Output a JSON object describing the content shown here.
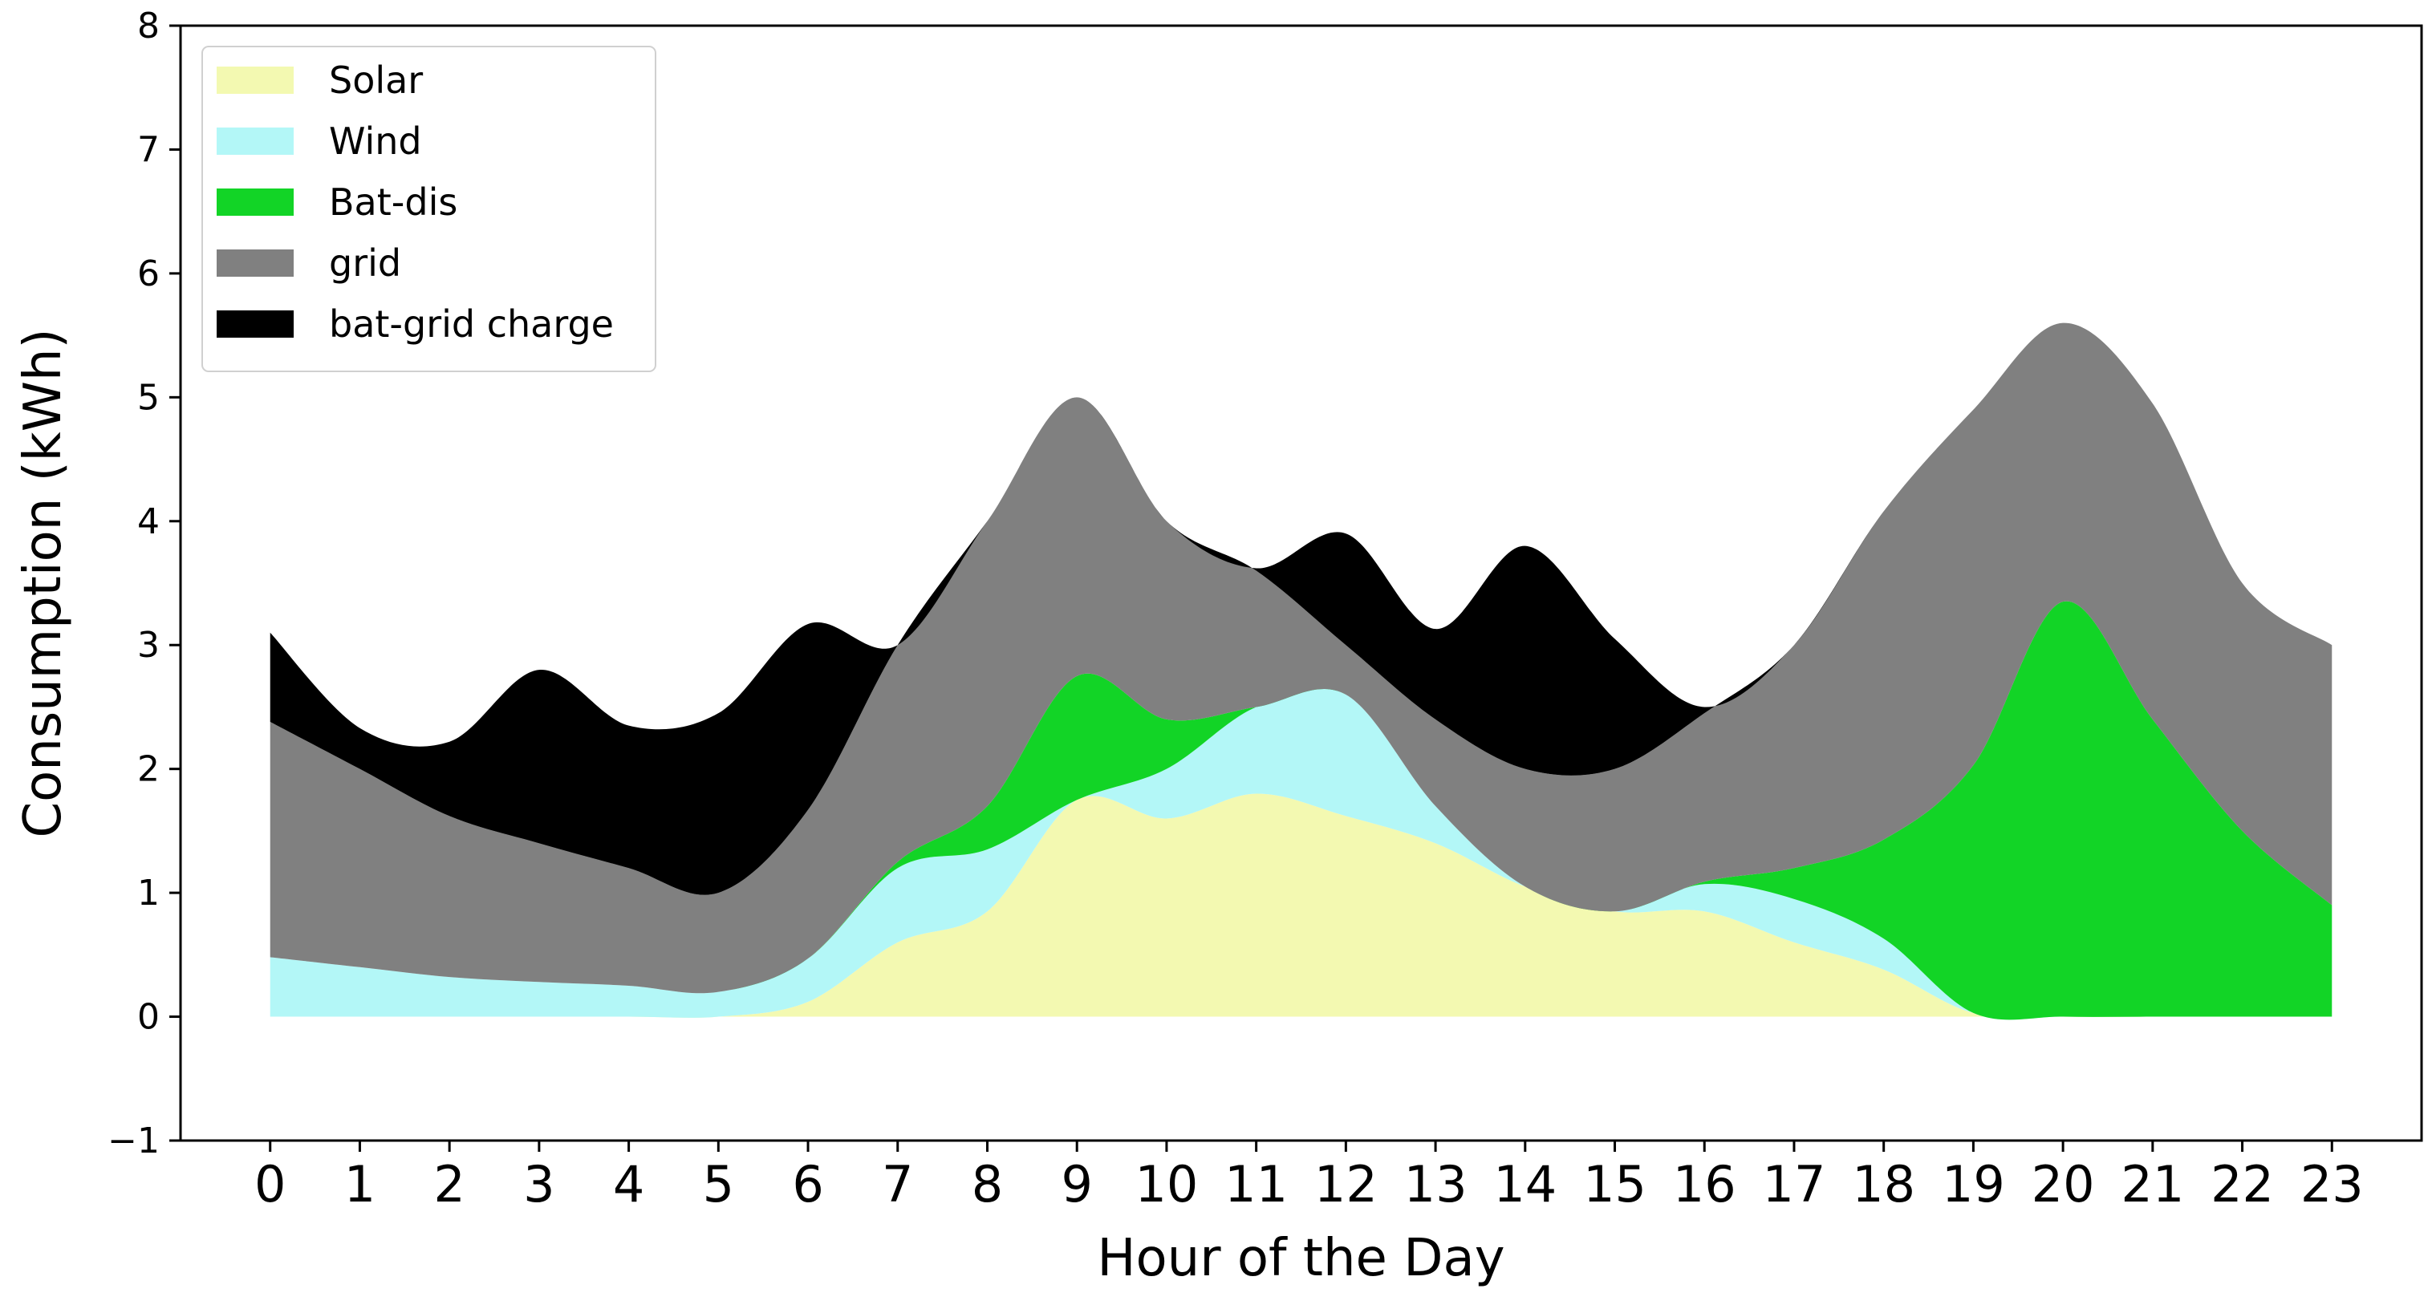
{
  "chart_data": {
    "type": "area",
    "title": "",
    "xlabel": "Hour of the Day",
    "ylabel": "Consumption (kWh)",
    "xlim": [
      -1,
      24
    ],
    "ylim": [
      -1,
      8
    ],
    "grid": false,
    "legend_position": "top-left",
    "x": [
      0,
      1,
      2,
      3,
      4,
      5,
      6,
      7,
      8,
      9,
      10,
      11,
      12,
      13,
      14,
      15,
      16,
      17,
      18,
      19,
      20,
      21,
      22,
      23
    ],
    "x_tick_labels": [
      "0",
      "1",
      "2",
      "3",
      "4",
      "5",
      "6",
      "7",
      "8",
      "9",
      "10",
      "11",
      "12",
      "13",
      "14",
      "15",
      "16",
      "17",
      "18",
      "19",
      "20",
      "21",
      "22",
      "23"
    ],
    "y_ticks": [
      -1,
      0,
      1,
      2,
      3,
      4,
      5,
      6,
      7,
      8
    ],
    "y_tick_labels": [
      "−1",
      "0",
      "1",
      "2",
      "3",
      "4",
      "5",
      "6",
      "7",
      "8"
    ],
    "series": [
      {
        "name": "Solar",
        "color": "#f3f9b1",
        "values": [
          0,
          0,
          0,
          0,
          0,
          0,
          0.12,
          0.6,
          0.85,
          1.75,
          1.6,
          1.8,
          1.62,
          1.4,
          1.05,
          0.85,
          0.85,
          0.6,
          0.38,
          0.03,
          0,
          0,
          0,
          0
        ]
      },
      {
        "name": "Wind",
        "color": "#b3f7f7",
        "values": [
          0.48,
          0.4,
          0.32,
          0.28,
          0.25,
          0.2,
          0.35,
          0.6,
          0.5,
          0,
          0.4,
          0.7,
          0.98,
          0.3,
          0,
          0,
          0.22,
          0.35,
          0.25,
          0,
          0,
          0,
          0,
          0
        ]
      },
      {
        "name": "Bat-dis",
        "color": "#12d426",
        "values": [
          0,
          0,
          0,
          0,
          0,
          0,
          0,
          0.05,
          0.35,
          1.0,
          0.4,
          0,
          0,
          0,
          0,
          0,
          0.02,
          0.25,
          0.8,
          2.0,
          3.35,
          2.4,
          1.5,
          0.9
        ]
      },
      {
        "name": "grid",
        "color": "#808080",
        "values": [
          1.9,
          1.6,
          1.3,
          1.12,
          0.95,
          0.8,
          1.2,
          1.75,
          2.3,
          2.25,
          1.6,
          1.1,
          0.4,
          0.7,
          0.95,
          1.15,
          1.36,
          1.8,
          2.65,
          2.87,
          2.25,
          2.55,
          2.0,
          2.1
        ]
      },
      {
        "name": "bat-grid charge",
        "color": "#000000",
        "values": [
          0.72,
          0.33,
          0.6,
          1.4,
          1.15,
          1.45,
          1.5,
          0,
          0,
          0,
          0,
          0.02,
          0.9,
          0.73,
          1.8,
          1.05,
          0.05,
          0,
          0,
          0,
          0,
          0,
          0,
          0
        ]
      }
    ]
  }
}
